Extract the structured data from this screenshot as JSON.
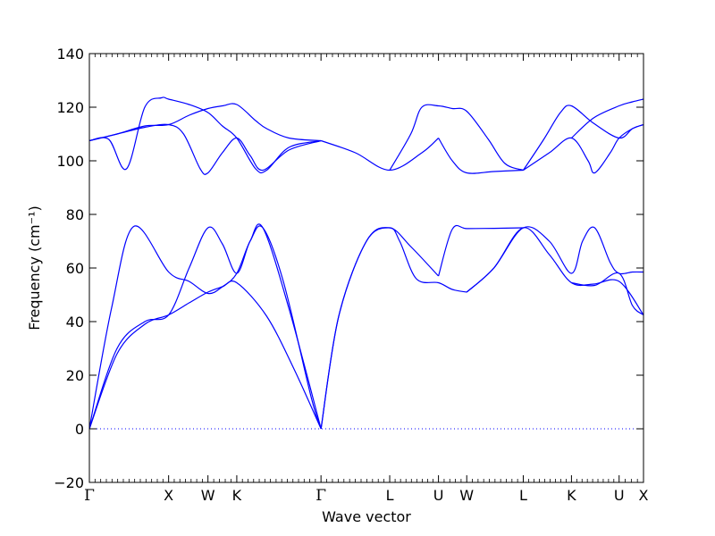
{
  "chart_data": {
    "type": "line",
    "title": "",
    "xlabel": "Wave vector",
    "ylabel": "Frequency (cm⁻¹)",
    "ylim": [
      -20,
      140
    ],
    "y_ticks": [
      "−20",
      "0",
      "20",
      "40",
      "60",
      "80",
      "100",
      "120",
      "140"
    ],
    "y_tick_values": [
      -20,
      0,
      20,
      40,
      60,
      80,
      100,
      120,
      140
    ],
    "xlim": [
      0,
      10.0
    ],
    "high_symmetry_points": [
      {
        "label": "Γ",
        "x": 0.0
      },
      {
        "label": "X",
        "x": 1.43
      },
      {
        "label": "W",
        "x": 2.14
      },
      {
        "label": "K",
        "x": 2.66
      },
      {
        "label": "Γ",
        "x": 4.18
      },
      {
        "label": "L",
        "x": 5.42
      },
      {
        "label": "U",
        "x": 6.3
      },
      {
        "label": "W",
        "x": 6.81
      },
      {
        "label": "L",
        "x": 7.83
      },
      {
        "label": "K",
        "x": 8.7
      },
      {
        "label": "U",
        "x": 9.56
      },
      {
        "label": "X",
        "x": 10.0
      }
    ],
    "zero_line": {
      "y": 0,
      "color": "#0000ff",
      "style": "dotted"
    },
    "series_color": "#0000ff",
    "series": [
      {
        "x": [
          0,
          0.5,
          1.0,
          1.43,
          1.8,
          2.14,
          2.4,
          2.66,
          3.2,
          3.7,
          4.18
        ],
        "y": [
          0,
          28,
          39,
          42.5,
          47,
          51,
          53,
          54.5,
          42,
          22,
          0
        ]
      },
      {
        "x": [
          0,
          0.4,
          0.8,
          1.43,
          1.8,
          2.14,
          2.4,
          2.66,
          2.9,
          3.13,
          3.5,
          4.0,
          4.18
        ],
        "y": [
          0,
          45,
          75.5,
          58.5,
          55,
          50.5,
          53,
          58,
          70,
          75,
          55,
          12,
          0
        ]
      },
      {
        "x": [
          0,
          0.5,
          1.0,
          1.43,
          1.8,
          2.14,
          2.4,
          2.66,
          2.9,
          3.13,
          3.6,
          4.18
        ],
        "y": [
          0,
          30,
          40,
          42.5,
          60,
          75,
          69,
          58,
          70,
          75,
          45,
          0
        ]
      },
      {
        "x": [
          4.18,
          4.5,
          5.0,
          5.42,
          5.8,
          6.3
        ],
        "y": [
          0,
          42,
          70,
          75,
          68,
          57
        ]
      },
      {
        "x": [
          4.18,
          4.5,
          5.0,
          5.42,
          5.6,
          5.9,
          6.3,
          6.55,
          6.81
        ],
        "y": [
          0,
          42,
          70,
          75,
          70,
          56,
          54.5,
          52,
          51
        ]
      },
      {
        "x": [
          6.3,
          6.55,
          6.81,
          7.3,
          7.83
        ],
        "y": [
          57,
          74.5,
          74.7,
          74.8,
          75
        ]
      },
      {
        "x": [
          6.81,
          7.3,
          7.83,
          8.3,
          8.7,
          9.1,
          9.56,
          10.0
        ],
        "y": [
          51,
          60,
          75,
          65,
          54.5,
          54,
          55,
          42.5
        ]
      },
      {
        "x": [
          6.81,
          7.3,
          7.83,
          8.3,
          8.7,
          8.9,
          9.12,
          9.4,
          9.56,
          9.8,
          10.0
        ],
        "y": [
          51,
          60,
          75,
          70,
          58,
          70,
          75,
          62,
          58,
          58.5,
          58.5
        ]
      },
      {
        "x": [
          8.7,
          9.12,
          9.56,
          9.8,
          10.0
        ],
        "y": [
          54.5,
          53.5,
          58,
          46,
          42.5
        ]
      },
      {
        "x": [
          0,
          0.5,
          1.0,
          1.43,
          1.8,
          2.14,
          2.4,
          2.66,
          3.0,
          3.2,
          3.6,
          4.18
        ],
        "y": [
          107.5,
          110,
          113,
          113.5,
          117,
          119.5,
          120.5,
          121,
          115,
          112,
          108.5,
          107.5
        ]
      },
      {
        "x": [
          0,
          0.35,
          0.67,
          1.0,
          1.3,
          1.43,
          1.8,
          2.14,
          2.4,
          2.66,
          3.0,
          3.2,
          3.6,
          4.18
        ],
        "y": [
          107.5,
          108,
          97,
          120,
          123.5,
          123,
          121,
          118,
          113,
          108.5,
          97,
          96.5,
          105,
          107.5
        ]
      },
      {
        "x": [
          0,
          0.5,
          1.0,
          1.43,
          1.7,
          2.0,
          2.14,
          2.4,
          2.66,
          2.9,
          3.13,
          3.6,
          4.18
        ],
        "y": [
          107.5,
          110,
          112.5,
          113.5,
          110,
          97,
          95.5,
          103,
          108.5,
          102,
          96.5,
          104,
          107.5
        ]
      },
      {
        "x": [
          4.18,
          4.8,
          5.42,
          6.0,
          6.3
        ],
        "y": [
          107.5,
          103,
          96.5,
          103,
          108.5
        ]
      },
      {
        "x": [
          5.42,
          5.8,
          6.0,
          6.3,
          6.55,
          6.81,
          7.2,
          7.5,
          7.83
        ],
        "y": [
          96.5,
          110,
          120,
          120.5,
          119.5,
          118.5,
          108,
          99,
          96.5
        ]
      },
      {
        "x": [
          6.3,
          6.55,
          6.81,
          7.3,
          7.83
        ],
        "y": [
          108.5,
          100,
          95.5,
          96,
          96.5
        ]
      },
      {
        "x": [
          7.83,
          8.2,
          8.5,
          8.7,
          9.1,
          9.56,
          9.8,
          10.0
        ],
        "y": [
          96.5,
          108,
          118,
          120.5,
          114,
          108.5,
          112,
          113.5
        ]
      },
      {
        "x": [
          7.83,
          8.3,
          8.7,
          9.0,
          9.12,
          9.4,
          9.56,
          9.8,
          10.0
        ],
        "y": [
          96.5,
          103,
          108.5,
          100,
          95.5,
          103,
          108.5,
          112,
          113.5
        ]
      },
      {
        "x": [
          8.7,
          9.1,
          9.56,
          9.8,
          10.0
        ],
        "y": [
          108.5,
          116,
          120.5,
          122,
          123
        ]
      }
    ]
  }
}
